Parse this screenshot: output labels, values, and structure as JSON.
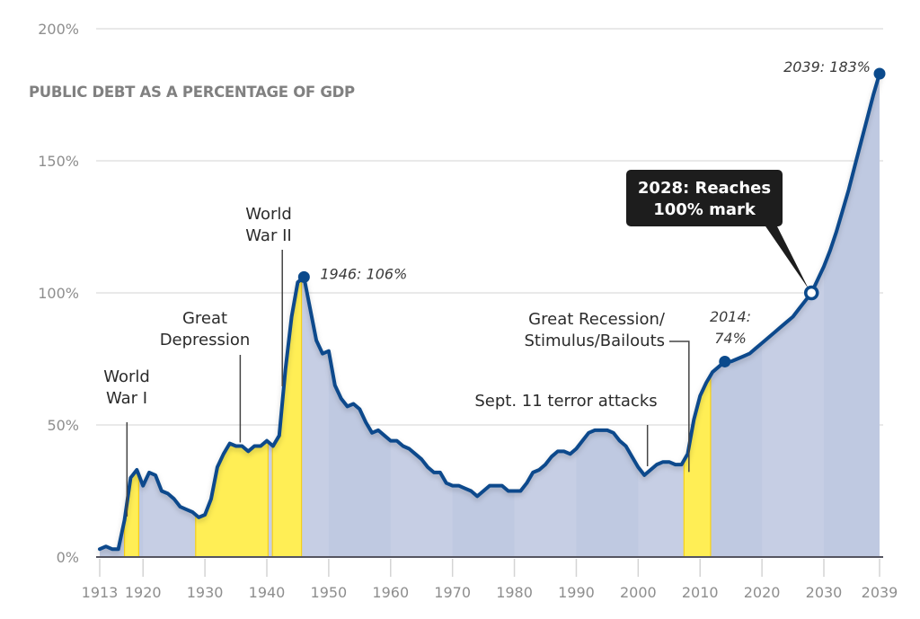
{
  "chart_data": {
    "type": "area",
    "title": "PUBLIC DEBT AS A PERCENTAGE OF GDP",
    "xlabel": "",
    "ylabel": "",
    "xlim": [
      1913,
      2039
    ],
    "ylim": [
      0,
      200
    ],
    "grid": true,
    "x_ticks": [
      1913,
      1920,
      1930,
      1940,
      1950,
      1960,
      1970,
      1980,
      1990,
      2000,
      2010,
      2020,
      2030,
      2039
    ],
    "x_tick_labels": [
      "1913",
      "1920",
      "1930",
      "1940",
      "1950",
      "1960",
      "1970",
      "1980",
      "1990",
      "2000",
      "2010",
      "2020",
      "2030",
      "2039"
    ],
    "y_ticks": [
      0,
      50,
      100,
      150,
      200
    ],
    "y_tick_labels": [
      "0%",
      "50%",
      "100%",
      "150%",
      "200%"
    ],
    "series": [
      {
        "name": "Public debt (% of GDP)",
        "x": [
          1913,
          1914,
          1915,
          1916,
          1917,
          1918,
          1919,
          1920,
          1921,
          1922,
          1923,
          1924,
          1925,
          1926,
          1927,
          1928,
          1929,
          1930,
          1931,
          1932,
          1933,
          1934,
          1935,
          1936,
          1937,
          1938,
          1939,
          1940,
          1941,
          1942,
          1943,
          1944,
          1945,
          1946,
          1947,
          1948,
          1949,
          1950,
          1951,
          1952,
          1953,
          1954,
          1955,
          1956,
          1957,
          1958,
          1959,
          1960,
          1961,
          1962,
          1963,
          1964,
          1965,
          1966,
          1967,
          1968,
          1969,
          1970,
          1971,
          1972,
          1973,
          1974,
          1975,
          1976,
          1977,
          1978,
          1979,
          1980,
          1981,
          1982,
          1983,
          1984,
          1985,
          1986,
          1987,
          1988,
          1989,
          1990,
          1991,
          1992,
          1993,
          1994,
          1995,
          1996,
          1997,
          1998,
          1999,
          2000,
          2001,
          2002,
          2003,
          2004,
          2005,
          2006,
          2007,
          2008,
          2009,
          2010,
          2011,
          2012,
          2013,
          2014,
          2015,
          2016,
          2017,
          2018,
          2019,
          2020,
          2021,
          2022,
          2023,
          2024,
          2025,
          2026,
          2027,
          2028,
          2029,
          2030,
          2031,
          2032,
          2033,
          2034,
          2035,
          2036,
          2037,
          2038,
          2039
        ],
        "values": [
          3,
          4,
          3,
          3,
          14,
          30,
          33,
          27,
          32,
          31,
          25,
          24,
          22,
          19,
          18,
          17,
          15,
          16,
          22,
          34,
          39,
          43,
          42,
          42,
          40,
          42,
          42,
          44,
          42,
          46,
          71,
          91,
          104,
          106,
          94,
          82,
          77,
          78,
          65,
          60,
          57,
          58,
          56,
          51,
          47,
          48,
          46,
          44,
          44,
          42,
          41,
          39,
          37,
          34,
          32,
          32,
          28,
          27,
          27,
          26,
          25,
          23,
          25,
          27,
          27,
          27,
          25,
          25,
          25,
          28,
          32,
          33,
          35,
          38,
          40,
          40,
          39,
          41,
          44,
          47,
          48,
          48,
          48,
          47,
          44,
          42,
          38,
          34,
          31,
          33,
          35,
          36,
          36,
          35,
          35,
          39,
          52,
          61,
          66,
          70,
          72,
          74,
          74,
          75,
          76,
          77,
          79,
          81,
          83,
          85,
          87,
          89,
          91,
          94,
          97,
          100,
          105,
          110,
          116,
          123,
          131,
          139,
          148,
          157,
          166,
          175,
          183
        ]
      }
    ],
    "highlight_periods": [
      {
        "name": "World War I",
        "start": 1917,
        "end": 1919.3
      },
      {
        "name": "Great Depression",
        "start": 1928.5,
        "end": 1940.2
      },
      {
        "name": "World War II",
        "start": 1940.9,
        "end": 1945.6
      },
      {
        "name": "Great Recession",
        "start": 2007.4,
        "end": 2011.7
      }
    ],
    "annotations": [
      {
        "id": "wwi",
        "lines": [
          "World",
          "War I"
        ],
        "year": 1917.4
      },
      {
        "id": "depression",
        "lines": [
          "Great",
          "Depression"
        ],
        "year": 1935.7
      },
      {
        "id": "wwii",
        "lines": [
          "World",
          "War II"
        ],
        "year": 1942.5
      },
      {
        "id": "sept11",
        "lines": [
          "Sept. 11 terror attacks"
        ],
        "year": 2001.5
      },
      {
        "id": "recession",
        "lines": [
          "Great Recession/",
          "Stimulus/Bailouts"
        ],
        "year": 2008.2
      }
    ],
    "point_labels": [
      {
        "id": "peak-1946",
        "year": 1946,
        "value": 106,
        "label": "1946: 106%"
      },
      {
        "id": "now-2014",
        "year": 2014,
        "value": 74,
        "lines": [
          "2014:",
          "74%"
        ]
      },
      {
        "id": "end-2039",
        "year": 2039,
        "value": 183,
        "label": "2039: 183%"
      }
    ],
    "callout": {
      "year": 2028,
      "value": 100,
      "lines": [
        "2028: Reaches",
        "100% mark"
      ]
    },
    "colors": {
      "line": "#0b4a8c",
      "area": "#bfc9e1",
      "area_alt": "#c6cee4",
      "highlight": "#ffee55",
      "highlight_edge": "#f5cf1a",
      "callout_bg": "#1d1d1d",
      "grid": "#dcdcdc",
      "axis": "#555560"
    }
  }
}
